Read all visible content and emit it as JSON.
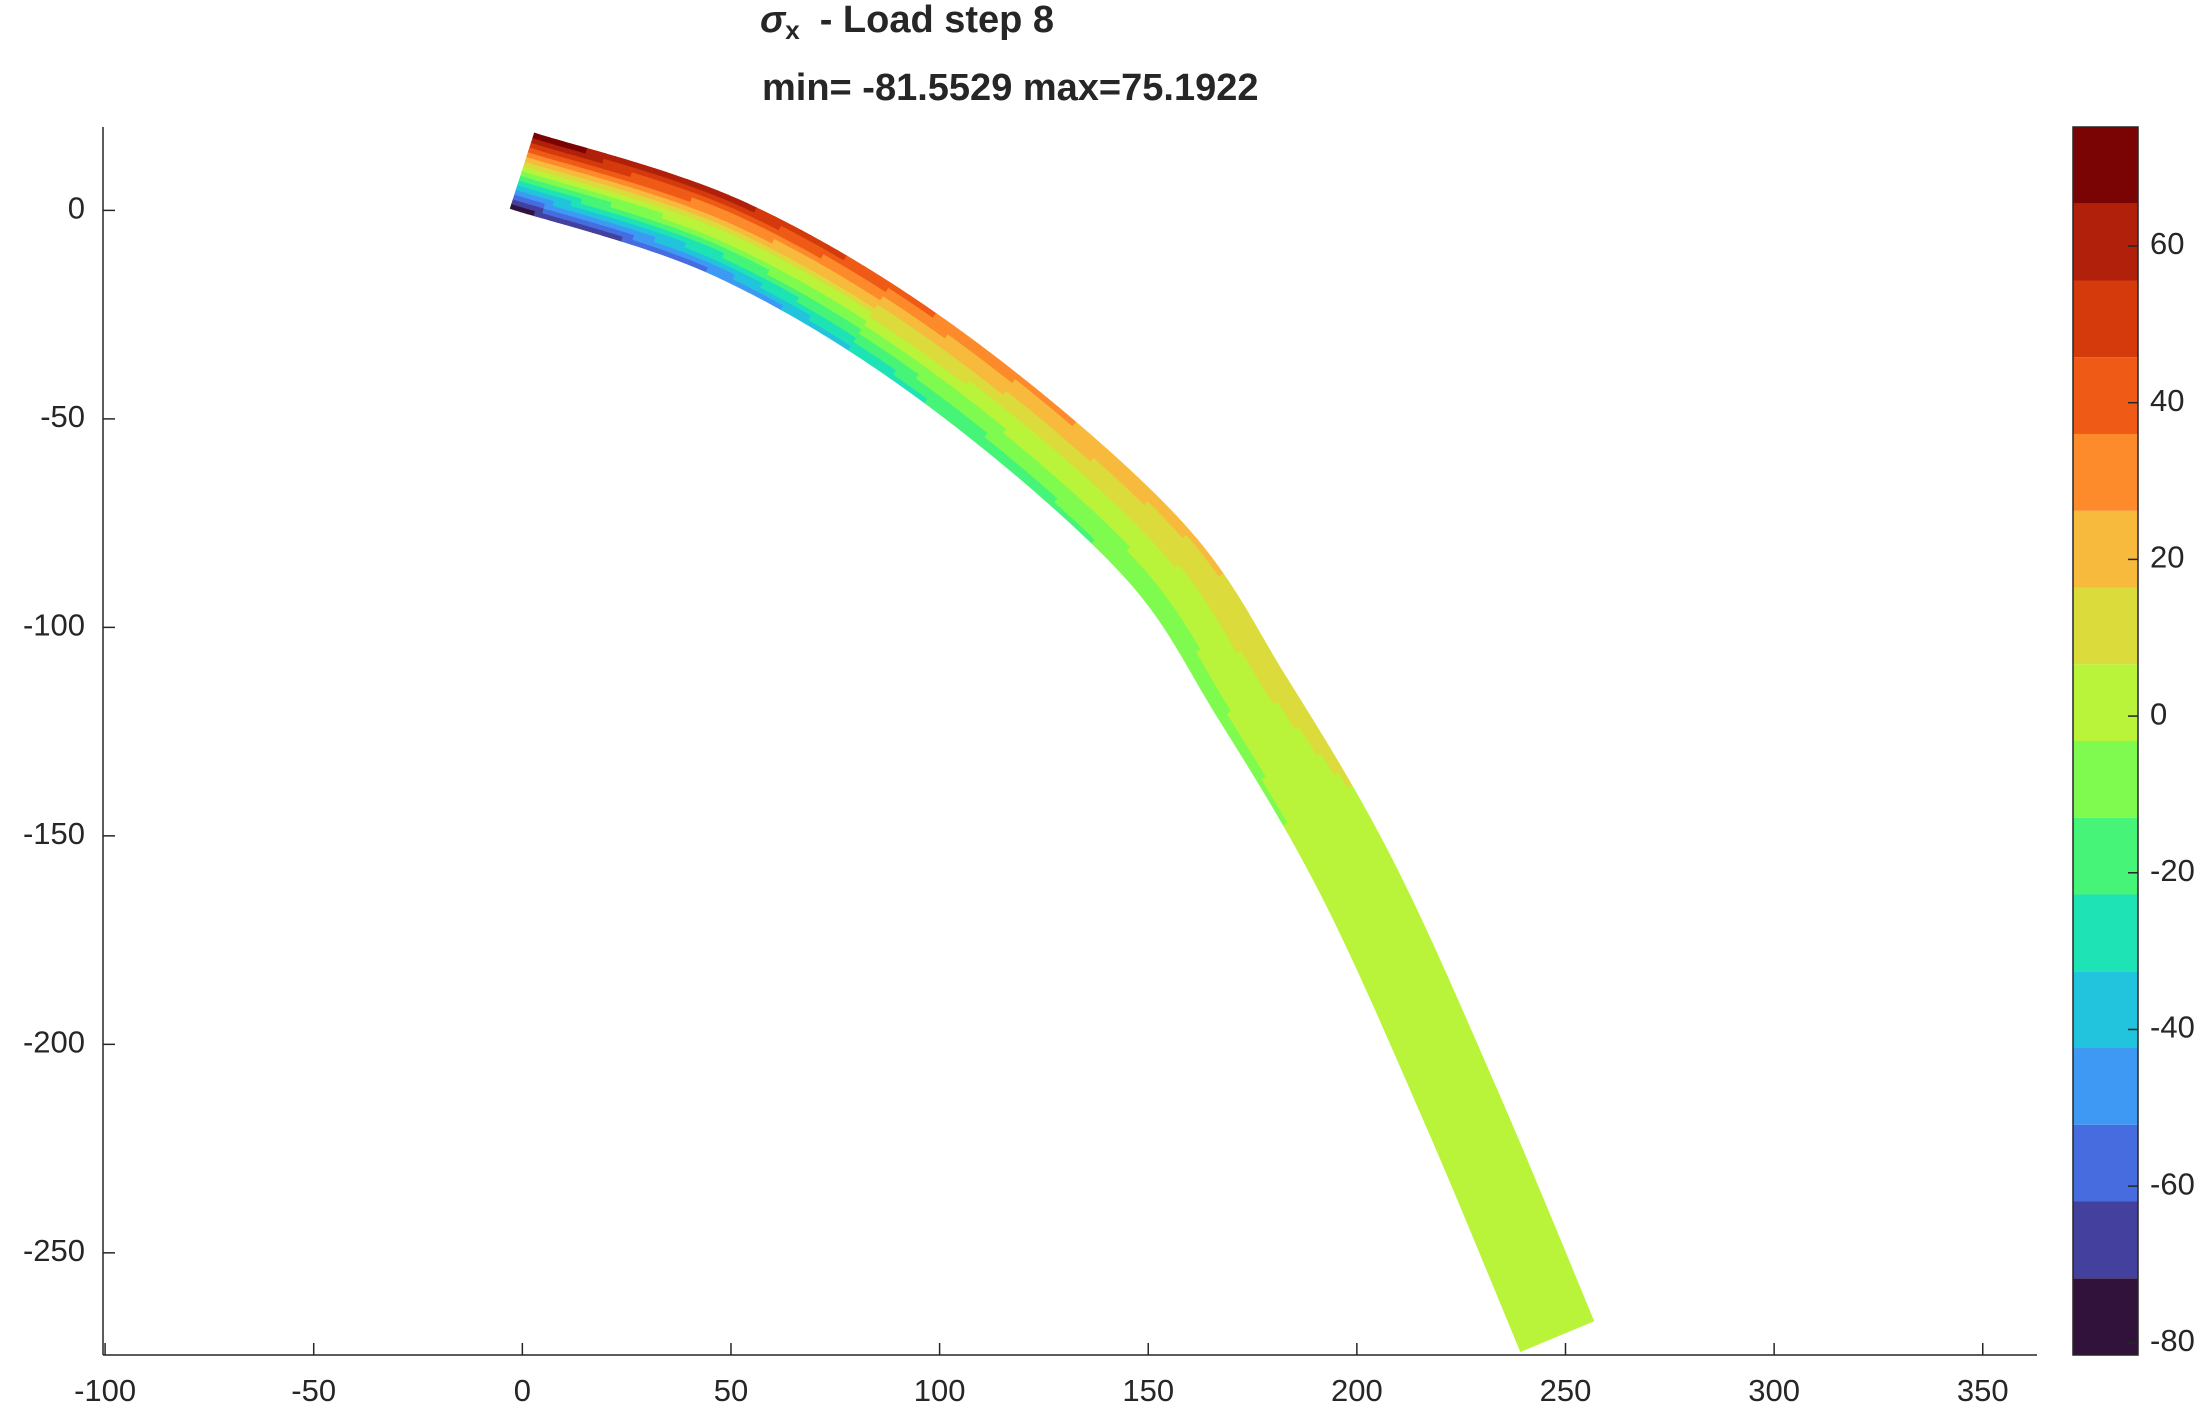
{
  "chart_data": {
    "type": "contour",
    "title": {
      "symbol": "σ",
      "subscript": "x",
      "text": "-  Load step 8"
    },
    "subtitle": "min= -81.5529  max=75.1922",
    "xlim": [
      -100.5,
      363
    ],
    "ylim": [
      -274.5,
      20
    ],
    "xticks": [
      -100,
      -50,
      0,
      50,
      100,
      150,
      200,
      250,
      300,
      350
    ],
    "yticks": [
      -250,
      -200,
      -150,
      -100,
      -50,
      0
    ],
    "levels": [
      -81.5529,
      -71.76,
      -61.96,
      -52.16,
      -42.37,
      -32.57,
      -22.77,
      -12.98,
      -3.18,
      6.62,
      16.41,
      26.21,
      36.01,
      45.8,
      55.6,
      65.4,
      75.1922
    ],
    "colormap": [
      "#30123b",
      "#43409e",
      "#466ce0",
      "#3d99f4",
      "#22c4dd",
      "#1ee3b4",
      "#46f478",
      "#7efb4e",
      "#b9f43a",
      "#dcdb3c",
      "#f8ba3c",
      "#fd8a2b",
      "#ef5a17",
      "#d43a0b",
      "#b0200a",
      "#7a0403"
    ],
    "cticks": [
      -80,
      -60,
      -40,
      -20,
      0,
      20,
      40,
      60
    ],
    "beam": {
      "x": [
        0,
        50,
        100,
        150,
        175,
        200,
        225,
        248
      ],
      "y": [
        9.5,
        -7,
        -37,
        -80,
        -117,
        -160,
        -215,
        -270
      ],
      "thickness": 19,
      "top_stress": [
        75,
        60,
        35,
        20,
        12,
        4,
        2,
        1
      ],
      "bottom_stress": [
        -81,
        -55,
        -25,
        -12,
        -6,
        -2,
        -1,
        0
      ]
    }
  }
}
